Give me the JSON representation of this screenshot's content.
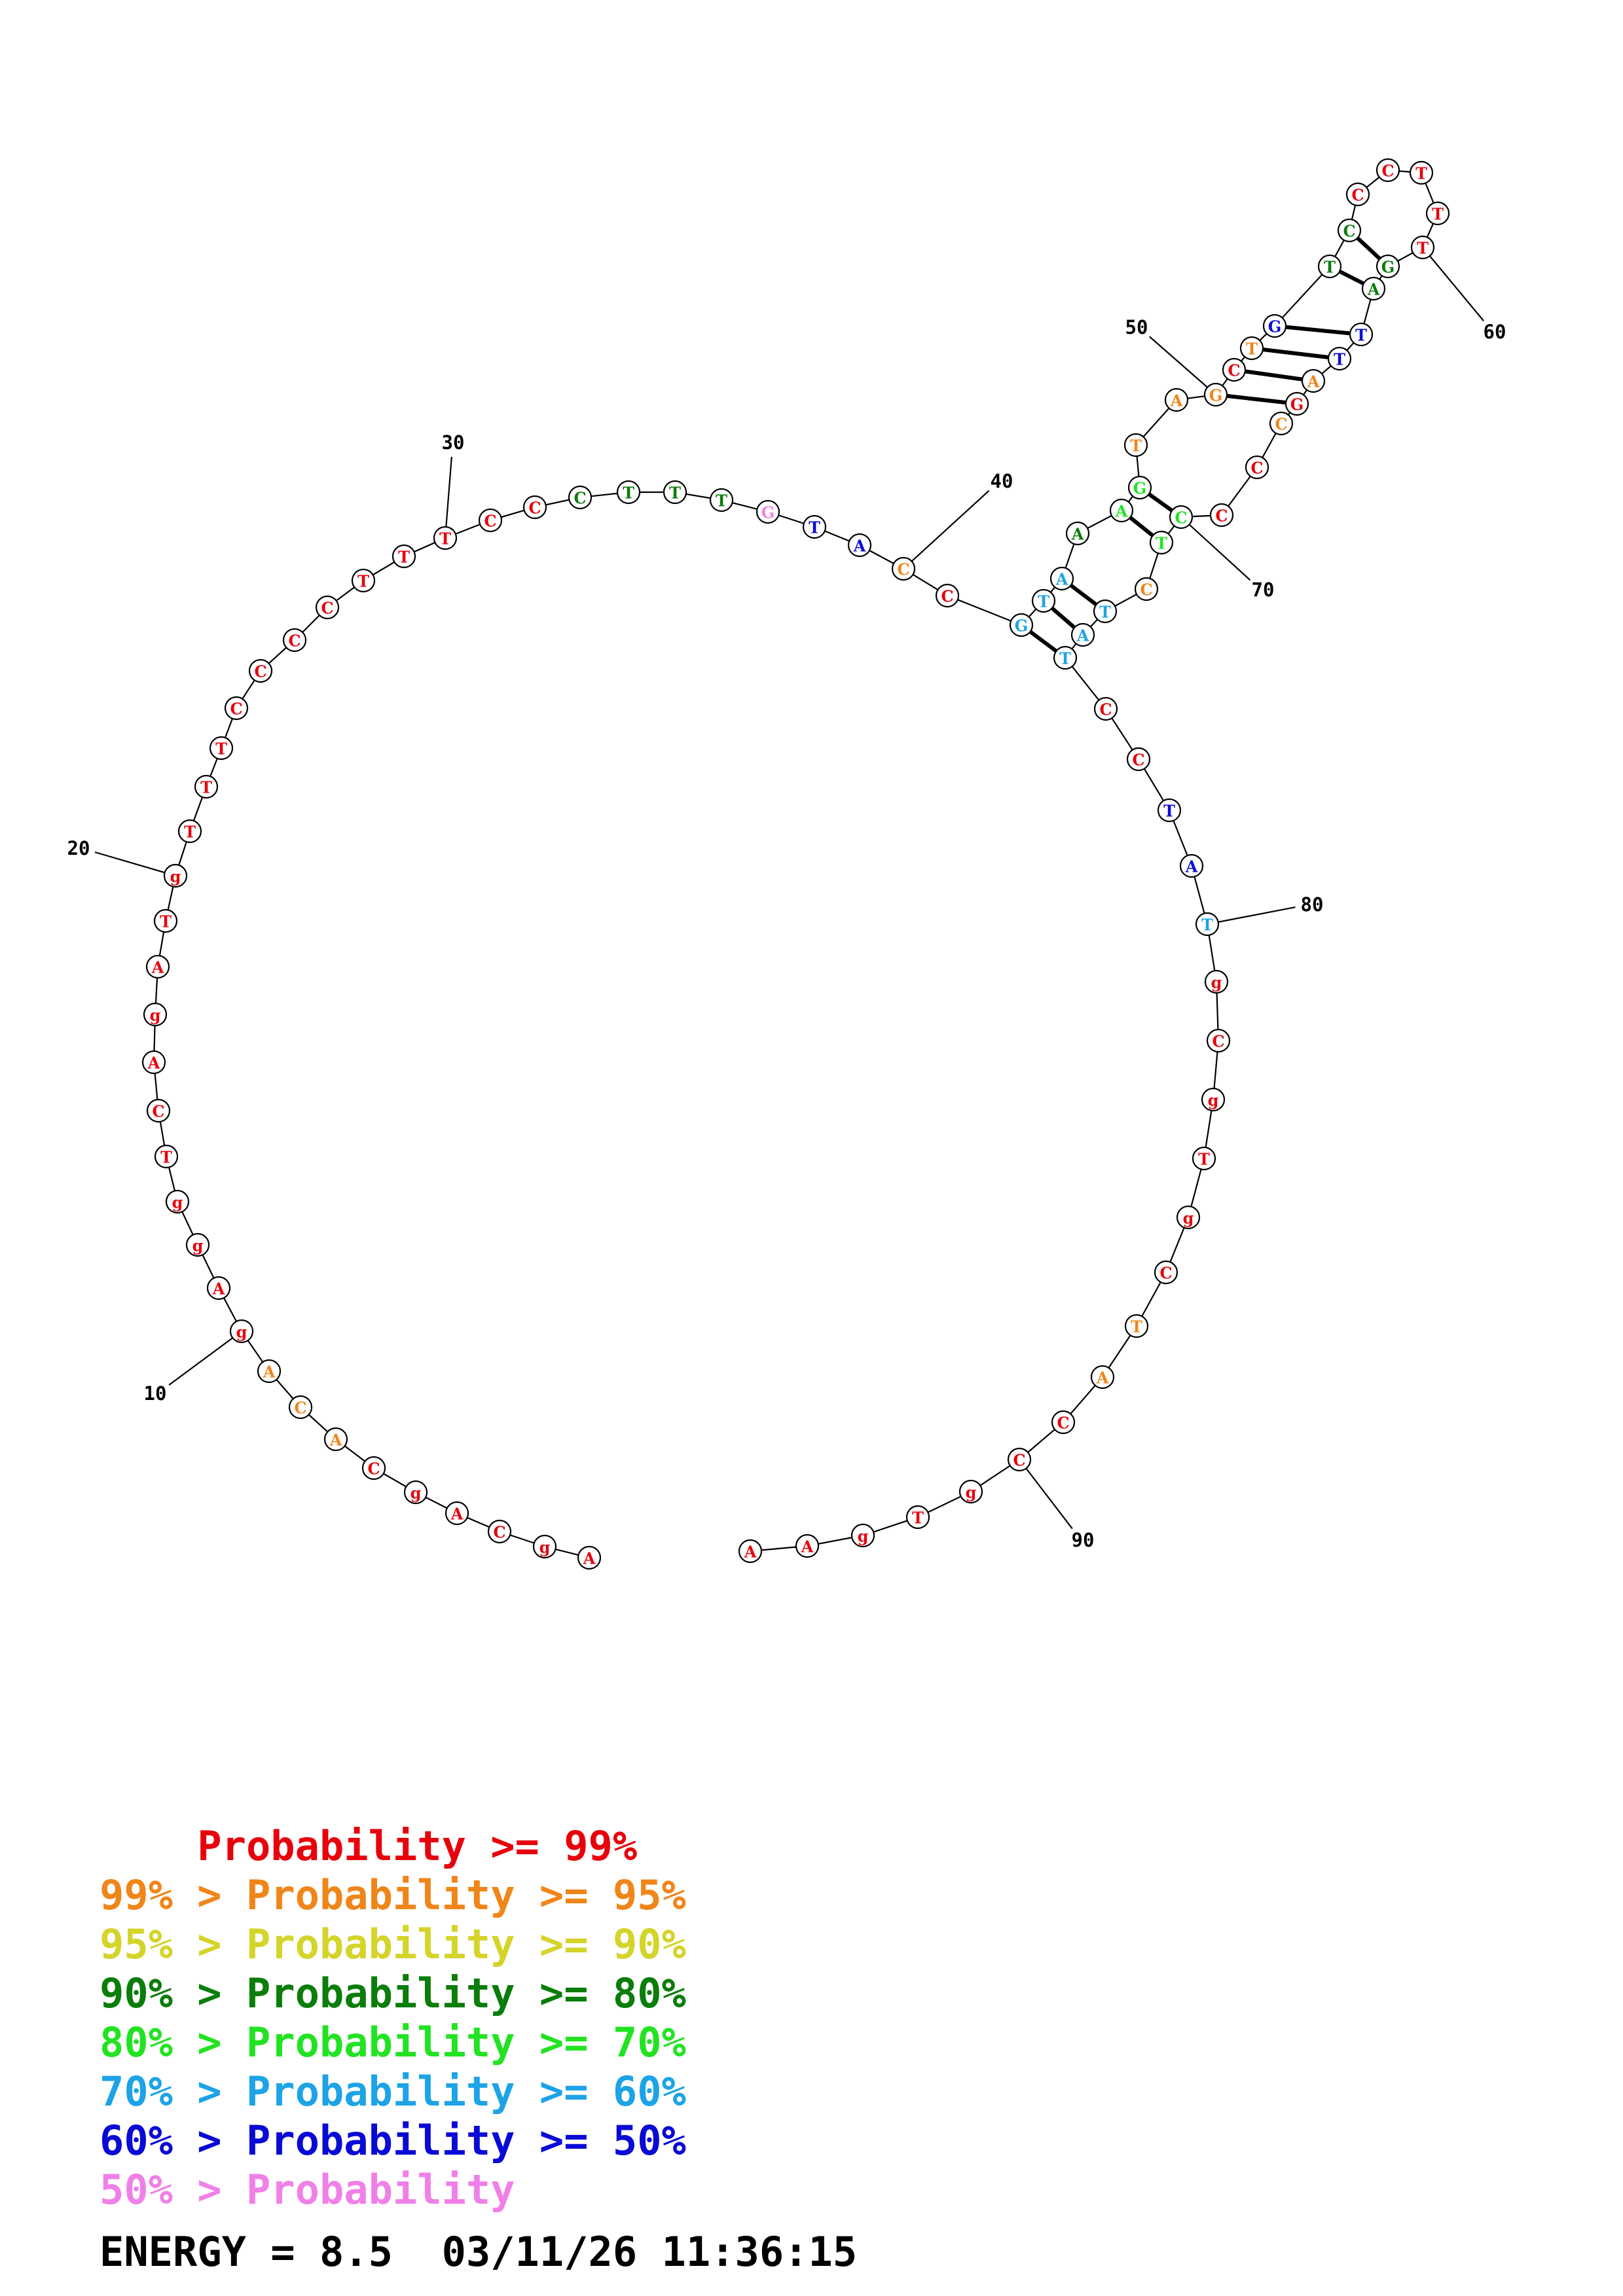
{
  "structure": {
    "bases": [
      {
        "n": 1,
        "b": "A",
        "p": "red"
      },
      {
        "n": 2,
        "b": "g",
        "p": "red"
      },
      {
        "n": 3,
        "b": "C",
        "p": "red"
      },
      {
        "n": 4,
        "b": "A",
        "p": "red"
      },
      {
        "n": 5,
        "b": "g",
        "p": "red"
      },
      {
        "n": 6,
        "b": "C",
        "p": "red"
      },
      {
        "n": 7,
        "b": "A",
        "p": "orange"
      },
      {
        "n": 8,
        "b": "C",
        "p": "orange"
      },
      {
        "n": 9,
        "b": "A",
        "p": "orange"
      },
      {
        "n": 10,
        "b": "g",
        "p": "red"
      },
      {
        "n": 11,
        "b": "A",
        "p": "red"
      },
      {
        "n": 12,
        "b": "g",
        "p": "red"
      },
      {
        "n": 13,
        "b": "g",
        "p": "red"
      },
      {
        "n": 14,
        "b": "T",
        "p": "red"
      },
      {
        "n": 15,
        "b": "C",
        "p": "red"
      },
      {
        "n": 16,
        "b": "A",
        "p": "red"
      },
      {
        "n": 17,
        "b": "g",
        "p": "red"
      },
      {
        "n": 18,
        "b": "A",
        "p": "red"
      },
      {
        "n": 19,
        "b": "T",
        "p": "red"
      },
      {
        "n": 20,
        "b": "g",
        "p": "red"
      },
      {
        "n": 21,
        "b": "T",
        "p": "red"
      },
      {
        "n": 22,
        "b": "T",
        "p": "red"
      },
      {
        "n": 23,
        "b": "T",
        "p": "red"
      },
      {
        "n": 24,
        "b": "C",
        "p": "red"
      },
      {
        "n": 25,
        "b": "C",
        "p": "red"
      },
      {
        "n": 26,
        "b": "C",
        "p": "red"
      },
      {
        "n": 27,
        "b": "C",
        "p": "red"
      },
      {
        "n": 28,
        "b": "T",
        "p": "red"
      },
      {
        "n": 29,
        "b": "T",
        "p": "red"
      },
      {
        "n": 30,
        "b": "T",
        "p": "red"
      },
      {
        "n": 31,
        "b": "C",
        "p": "red"
      },
      {
        "n": 32,
        "b": "C",
        "p": "red"
      },
      {
        "n": 33,
        "b": "C",
        "p": "darkgreen"
      },
      {
        "n": 34,
        "b": "T",
        "p": "darkgreen"
      },
      {
        "n": 35,
        "b": "T",
        "p": "darkgreen"
      },
      {
        "n": 36,
        "b": "T",
        "p": "darkgreen"
      },
      {
        "n": 37,
        "b": "G",
        "p": "pink"
      },
      {
        "n": 38,
        "b": "T",
        "p": "blue"
      },
      {
        "n": 39,
        "b": "A",
        "p": "blue"
      },
      {
        "n": 40,
        "b": "C",
        "p": "orange"
      },
      {
        "n": 41,
        "b": "C",
        "p": "red"
      },
      {
        "n": 42,
        "b": "G",
        "p": "cyan"
      },
      {
        "n": 43,
        "b": "T",
        "p": "cyan"
      },
      {
        "n": 44,
        "b": "A",
        "p": "cyan"
      },
      {
        "n": 45,
        "b": "A",
        "p": "darkgreen"
      },
      {
        "n": 46,
        "b": "A",
        "p": "lightgreen"
      },
      {
        "n": 47,
        "b": "G",
        "p": "lightgreen"
      },
      {
        "n": 48,
        "b": "T",
        "p": "orange"
      },
      {
        "n": 49,
        "b": "A",
        "p": "orange"
      },
      {
        "n": 50,
        "b": "G",
        "p": "orange"
      },
      {
        "n": 51,
        "b": "C",
        "p": "red"
      },
      {
        "n": 52,
        "b": "T",
        "p": "orange"
      },
      {
        "n": 53,
        "b": "G",
        "p": "blue"
      },
      {
        "n": 54,
        "b": "T",
        "p": "darkgreen"
      },
      {
        "n": 55,
        "b": "C",
        "p": "darkgreen"
      },
      {
        "n": 56,
        "b": "C",
        "p": "red"
      },
      {
        "n": 57,
        "b": "C",
        "p": "red"
      },
      {
        "n": 58,
        "b": "T",
        "p": "red"
      },
      {
        "n": 59,
        "b": "T",
        "p": "red"
      },
      {
        "n": 60,
        "b": "T",
        "p": "red"
      },
      {
        "n": 61,
        "b": "G",
        "p": "darkgreen"
      },
      {
        "n": 62,
        "b": "A",
        "p": "darkgreen"
      },
      {
        "n": 63,
        "b": "T",
        "p": "blue"
      },
      {
        "n": 64,
        "b": "T",
        "p": "blue"
      },
      {
        "n": 65,
        "b": "A",
        "p": "orange"
      },
      {
        "n": 66,
        "b": "G",
        "p": "red"
      },
      {
        "n": 67,
        "b": "C",
        "p": "orange"
      },
      {
        "n": 68,
        "b": "C",
        "p": "red"
      },
      {
        "n": 69,
        "b": "C",
        "p": "red"
      },
      {
        "n": 70,
        "b": "C",
        "p": "lightgreen"
      },
      {
        "n": 71,
        "b": "T",
        "p": "lightgreen"
      },
      {
        "n": 72,
        "b": "C",
        "p": "orange"
      },
      {
        "n": 73,
        "b": "T",
        "p": "cyan"
      },
      {
        "n": 74,
        "b": "A",
        "p": "cyan"
      },
      {
        "n": 75,
        "b": "T",
        "p": "cyan"
      },
      {
        "n": 76,
        "b": "C",
        "p": "red"
      },
      {
        "n": 77,
        "b": "C",
        "p": "red"
      },
      {
        "n": 78,
        "b": "T",
        "p": "blue"
      },
      {
        "n": 79,
        "b": "A",
        "p": "blue"
      },
      {
        "n": 80,
        "b": "T",
        "p": "cyan"
      },
      {
        "n": 81,
        "b": "g",
        "p": "red"
      },
      {
        "n": 82,
        "b": "C",
        "p": "red"
      },
      {
        "n": 83,
        "b": "g",
        "p": "red"
      },
      {
        "n": 84,
        "b": "T",
        "p": "red"
      },
      {
        "n": 85,
        "b": "g",
        "p": "red"
      },
      {
        "n": 86,
        "b": "C",
        "p": "red"
      },
      {
        "n": 87,
        "b": "T",
        "p": "orange"
      },
      {
        "n": 88,
        "b": "A",
        "p": "orange"
      },
      {
        "n": 89,
        "b": "C",
        "p": "red"
      },
      {
        "n": 90,
        "b": "C",
        "p": "red"
      },
      {
        "n": 91,
        "b": "g",
        "p": "red"
      },
      {
        "n": 92,
        "b": "T",
        "p": "red"
      },
      {
        "n": 93,
        "b": "g",
        "p": "red"
      },
      {
        "n": 94,
        "b": "A",
        "p": "red"
      },
      {
        "n": 95,
        "b": "A",
        "p": "red"
      }
    ],
    "pairs": [
      [
        42,
        75
      ],
      [
        43,
        74
      ],
      [
        44,
        73
      ],
      [
        46,
        71
      ],
      [
        47,
        70
      ],
      [
        50,
        66
      ],
      [
        51,
        65
      ],
      [
        52,
        64
      ],
      [
        53,
        63
      ],
      [
        54,
        62
      ],
      [
        55,
        61
      ]
    ],
    "tick_labels": [
      {
        "n": 10,
        "label": "10"
      },
      {
        "n": 20,
        "label": "20"
      },
      {
        "n": 30,
        "label": "30"
      },
      {
        "n": 40,
        "label": "40"
      },
      {
        "n": 50,
        "label": "50"
      },
      {
        "n": 60,
        "label": "60"
      },
      {
        "n": 70,
        "label": "70"
      },
      {
        "n": 80,
        "label": "80"
      },
      {
        "n": 90,
        "label": "90"
      }
    ]
  },
  "colors": {
    "red": "#e8000b",
    "orange": "#f08519",
    "yellow": "#d4d42a",
    "darkgreen": "#0a7d0a",
    "lightgreen": "#22e322",
    "cyan": "#1da3e6",
    "blue": "#0a0ad6",
    "pink": "#f080e8",
    "black": "#000000"
  },
  "legend": [
    {
      "prefix": "    ",
      "text": "Probability >= 99%",
      "color": "red"
    },
    {
      "prefix": "",
      "text": "99% > Probability >= 95%",
      "color": "orange"
    },
    {
      "prefix": "",
      "text": "95% > Probability >= 90%",
      "color": "yellow"
    },
    {
      "prefix": "",
      "text": "90% > Probability >= 80%",
      "color": "darkgreen"
    },
    {
      "prefix": "",
      "text": "80% > Probability >= 70%",
      "color": "lightgreen"
    },
    {
      "prefix": "",
      "text": "70% > Probability >= 60%",
      "color": "cyan"
    },
    {
      "prefix": "",
      "text": "60% > Probability >= 50%",
      "color": "blue"
    },
    {
      "prefix": "",
      "text": "50% > Probability",
      "color": "pink"
    }
  ],
  "energy_line": "ENERGY = 8.5  03/11/26 11:36:15"
}
